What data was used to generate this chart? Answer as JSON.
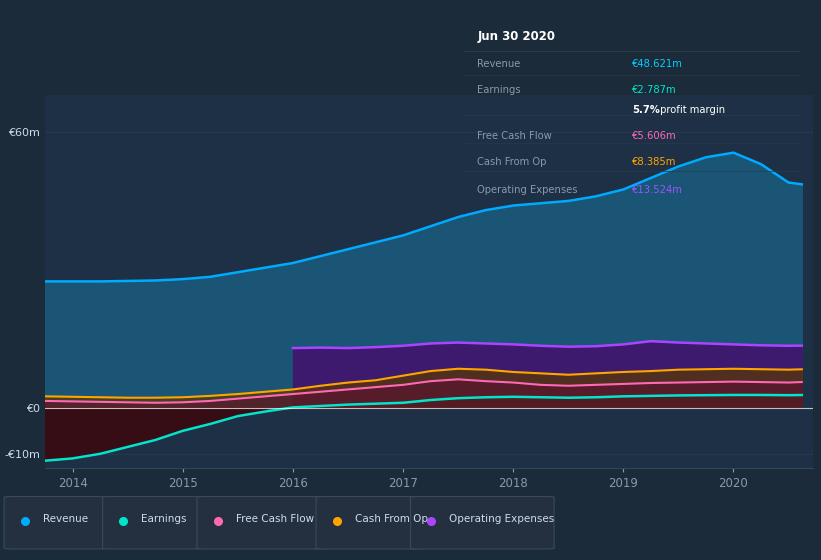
{
  "background_color": "#1c2b3a",
  "plot_bg_color": "#1e3045",
  "title_box": {
    "date": "Jun 30 2020",
    "rows": [
      {
        "label": "Revenue",
        "value": "€48.621m",
        "value_color": "#00cfff"
      },
      {
        "label": "Earnings",
        "value": "€2.787m",
        "value_color": "#00e5cc"
      },
      {
        "label": "",
        "value": "5.7% profit margin",
        "value_color": "#ffffff"
      },
      {
        "label": "Free Cash Flow",
        "value": "€5.606m",
        "value_color": "#ff69b4"
      },
      {
        "label": "Cash From Op",
        "value": "€8.385m",
        "value_color": "#ffa500"
      },
      {
        "label": "Operating Expenses",
        "value": "€13.524m",
        "value_color": "#9955ff"
      }
    ]
  },
  "years": [
    2013.75,
    2014.0,
    2014.25,
    2014.5,
    2014.75,
    2015.0,
    2015.25,
    2015.5,
    2015.75,
    2016.0,
    2016.25,
    2016.5,
    2016.75,
    2017.0,
    2017.25,
    2017.5,
    2017.75,
    2018.0,
    2018.25,
    2018.5,
    2018.75,
    2019.0,
    2019.25,
    2019.5,
    2019.75,
    2020.0,
    2020.25,
    2020.5,
    2020.62
  ],
  "revenue": [
    27.5,
    27.5,
    27.5,
    27.6,
    27.7,
    28.0,
    28.5,
    29.5,
    30.5,
    31.5,
    33.0,
    34.5,
    36.0,
    37.5,
    39.5,
    41.5,
    43.0,
    44.0,
    44.5,
    45.0,
    46.0,
    47.5,
    50.0,
    52.5,
    54.5,
    55.5,
    53.0,
    49.0,
    48.621
  ],
  "earnings": [
    -11.5,
    -11.0,
    -10.0,
    -8.5,
    -7.0,
    -5.0,
    -3.5,
    -1.8,
    -0.8,
    0.1,
    0.4,
    0.7,
    0.9,
    1.1,
    1.7,
    2.1,
    2.3,
    2.4,
    2.3,
    2.2,
    2.3,
    2.5,
    2.6,
    2.7,
    2.75,
    2.8,
    2.8,
    2.75,
    2.787
  ],
  "operating_expenses": [
    0,
    0,
    0,
    0,
    0,
    0,
    0,
    0,
    0,
    13.0,
    13.1,
    13.0,
    13.2,
    13.5,
    14.0,
    14.2,
    14.0,
    13.8,
    13.5,
    13.3,
    13.4,
    13.8,
    14.5,
    14.2,
    14.0,
    13.8,
    13.6,
    13.5,
    13.524
  ],
  "free_cash_flow": [
    1.5,
    1.4,
    1.3,
    1.2,
    1.1,
    1.2,
    1.5,
    2.0,
    2.5,
    3.0,
    3.5,
    4.0,
    4.5,
    5.0,
    5.8,
    6.2,
    5.8,
    5.5,
    5.0,
    4.8,
    5.0,
    5.2,
    5.4,
    5.5,
    5.6,
    5.7,
    5.6,
    5.5,
    5.606
  ],
  "cash_from_op": [
    2.5,
    2.4,
    2.3,
    2.2,
    2.2,
    2.3,
    2.6,
    3.0,
    3.5,
    4.0,
    4.8,
    5.5,
    6.0,
    7.0,
    8.0,
    8.5,
    8.3,
    7.8,
    7.5,
    7.2,
    7.5,
    7.8,
    8.0,
    8.3,
    8.4,
    8.5,
    8.4,
    8.3,
    8.385
  ],
  "revenue_color": "#00aaff",
  "revenue_fill": "#1a5575",
  "earnings_color": "#00e5cc",
  "opex_color": "#aa44ff",
  "opex_fill": "#3d1a6e",
  "fcf_color": "#ff69b4",
  "cashop_color": "#ffa500",
  "ylim": [
    -13,
    68
  ],
  "ytick_vals": [
    60,
    0,
    -10
  ],
  "ytick_labels": [
    "€60m",
    "€0",
    "-€10m"
  ],
  "xtick_vals": [
    2014,
    2015,
    2016,
    2017,
    2018,
    2019,
    2020
  ],
  "xtick_labels": [
    "2014",
    "2015",
    "2016",
    "2017",
    "2018",
    "2019",
    "2020"
  ],
  "legend_items": [
    {
      "label": "Revenue",
      "color": "#00aaff"
    },
    {
      "label": "Earnings",
      "color": "#00e5cc"
    },
    {
      "label": "Free Cash Flow",
      "color": "#ff69b4"
    },
    {
      "label": "Cash From Op",
      "color": "#ffa500"
    },
    {
      "label": "Operating Expenses",
      "color": "#aa44ff"
    }
  ]
}
